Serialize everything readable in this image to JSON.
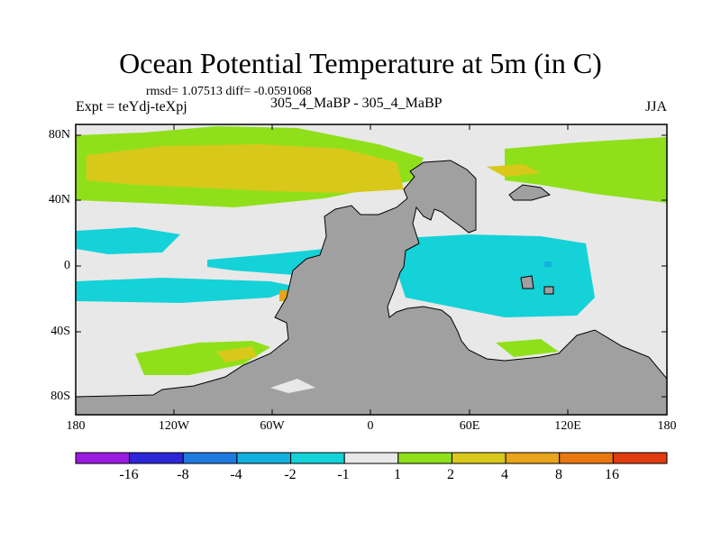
{
  "header": {
    "title": "Ocean Potential Temperature at 5m (in C)",
    "stats": "rmsd= 1.07513 diff= -0.0591068",
    "experiment": "Expt = teYdj-teXpj",
    "case": "305_4_MaBP - 305_4_MaBP",
    "season": "JJA"
  },
  "axes": {
    "x_ticks": [
      "180",
      "120W",
      "60W",
      "0",
      "60E",
      "120E",
      "180"
    ],
    "y_ticks": [
      "80N",
      "40N",
      "0",
      "40S",
      "80S"
    ]
  },
  "colorbar": {
    "labels": [
      "-16",
      "-8",
      "-4",
      "-2",
      "-1",
      "1",
      "2",
      "4",
      "8",
      "16"
    ],
    "colors": [
      "#9a1be0",
      "#2d26d9",
      "#1f7be0",
      "#14b0e0",
      "#14d2d8",
      "#e8e8e8",
      "#8fe01a",
      "#d8c81a",
      "#e8a41a",
      "#e8780f",
      "#e03c0f"
    ]
  },
  "colors": {
    "land": "#a0a0a0",
    "neutral": "#e8e8e8",
    "green": "#8fe01a",
    "yellow": "#d8c81a",
    "cyan": "#14d2d8",
    "blue": "#14b0e0",
    "orange": "#e8a41a"
  }
}
